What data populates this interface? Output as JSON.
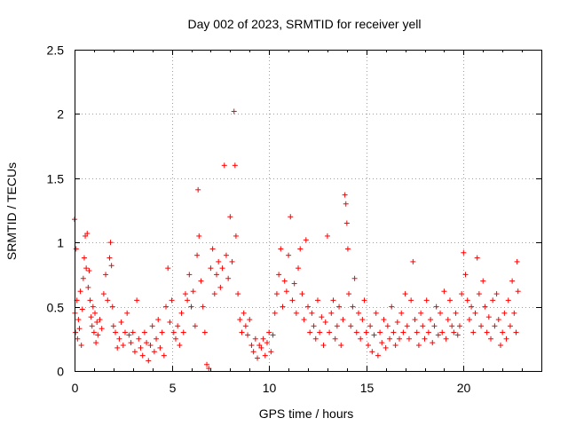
{
  "chart_data": {
    "type": "scatter",
    "title": "Day 002 of 2023, SRMTID for receiver yell",
    "xlabel": "GPS time / hours",
    "ylabel": "SRMTID / TECUs",
    "xlim": [
      0,
      24
    ],
    "ylim": [
      0,
      2.5
    ],
    "xticks": [
      0,
      5,
      10,
      15,
      20
    ],
    "yticks": [
      0,
      0.5,
      1,
      1.5,
      2,
      2.5
    ],
    "xtick_labels": [
      "0",
      "5",
      "10",
      "15",
      "20"
    ],
    "ytick_labels": [
      "0",
      "0.5",
      "1",
      "1.5",
      "2",
      "2.5"
    ],
    "grid": true,
    "marker": "+",
    "series": [
      {
        "name": "SRMTID",
        "color": "#ff0000",
        "points": [
          [
            0.0,
            1.18
          ],
          [
            0.02,
            0.45
          ],
          [
            0.05,
            0.3
          ],
          [
            0.08,
            0.95
          ],
          [
            0.12,
            0.55
          ],
          [
            0.15,
            0.25
          ],
          [
            0.2,
            0.4
          ],
          [
            0.25,
            0.33
          ],
          [
            0.3,
            0.62
          ],
          [
            0.35,
            0.2
          ],
          [
            0.4,
            0.48
          ],
          [
            0.45,
            0.72
          ],
          [
            0.5,
            0.88
          ],
          [
            0.55,
            1.05
          ],
          [
            0.6,
            0.8
          ],
          [
            0.65,
            1.07
          ],
          [
            0.7,
            0.65
          ],
          [
            0.75,
            0.78
          ],
          [
            0.8,
            0.55
          ],
          [
            0.85,
            0.42
          ],
          [
            0.9,
            0.35
          ],
          [
            0.95,
            0.5
          ],
          [
            1.0,
            0.3
          ],
          [
            1.05,
            0.45
          ],
          [
            1.1,
            0.22
          ],
          [
            1.15,
            0.38
          ],
          [
            1.2,
            0.28
          ],
          [
            1.3,
            0.4
          ],
          [
            1.4,
            0.33
          ],
          [
            1.5,
            0.6
          ],
          [
            1.6,
            0.75
          ],
          [
            1.7,
            0.55
          ],
          [
            1.8,
            0.88
          ],
          [
            1.85,
            1.0
          ],
          [
            1.9,
            0.82
          ],
          [
            1.95,
            0.5
          ],
          [
            2.0,
            0.35
          ],
          [
            2.1,
            0.3
          ],
          [
            2.2,
            0.18
          ],
          [
            2.3,
            0.25
          ],
          [
            2.4,
            0.38
          ],
          [
            2.5,
            0.2
          ],
          [
            2.6,
            0.3
          ],
          [
            2.7,
            0.45
          ],
          [
            2.8,
            0.28
          ],
          [
            2.9,
            0.22
          ],
          [
            3.0,
            0.3
          ],
          [
            3.1,
            0.15
          ],
          [
            3.2,
            0.55
          ],
          [
            3.3,
            0.25
          ],
          [
            3.4,
            0.18
          ],
          [
            3.5,
            0.12
          ],
          [
            3.6,
            0.3
          ],
          [
            3.7,
            0.22
          ],
          [
            3.8,
            0.08
          ],
          [
            3.9,
            0.2
          ],
          [
            4.0,
            0.35
          ],
          [
            4.1,
            0.15
          ],
          [
            4.2,
            0.25
          ],
          [
            4.3,
            0.4
          ],
          [
            4.4,
            0.18
          ],
          [
            4.5,
            0.3
          ],
          [
            4.6,
            0.12
          ],
          [
            4.7,
            0.5
          ],
          [
            4.8,
            0.8
          ],
          [
            4.9,
            0.38
          ],
          [
            5.0,
            0.55
          ],
          [
            5.1,
            0.3
          ],
          [
            5.2,
            0.25
          ],
          [
            5.3,
            0.35
          ],
          [
            5.4,
            0.2
          ],
          [
            5.5,
            0.45
          ],
          [
            5.6,
            0.3
          ],
          [
            5.7,
            0.6
          ],
          [
            5.8,
            0.55
          ],
          [
            5.9,
            0.75
          ],
          [
            6.0,
            0.5
          ],
          [
            6.1,
            0.62
          ],
          [
            6.2,
            0.35
          ],
          [
            6.3,
            0.9
          ],
          [
            6.35,
            1.41
          ],
          [
            6.4,
            1.05
          ],
          [
            6.5,
            0.7
          ],
          [
            6.6,
            0.5
          ],
          [
            6.7,
            0.3
          ],
          [
            6.8,
            0.05
          ],
          [
            6.9,
            0.02
          ],
          [
            7.0,
            0.8
          ],
          [
            7.1,
            0.95
          ],
          [
            7.2,
            0.6
          ],
          [
            7.3,
            0.75
          ],
          [
            7.4,
            0.85
          ],
          [
            7.5,
            0.65
          ],
          [
            7.6,
            0.8
          ],
          [
            7.7,
            1.6
          ],
          [
            7.8,
            0.9
          ],
          [
            7.9,
            0.72
          ],
          [
            8.0,
            1.2
          ],
          [
            8.1,
            0.85
          ],
          [
            8.2,
            2.02
          ],
          [
            8.25,
            1.6
          ],
          [
            8.3,
            1.05
          ],
          [
            8.4,
            0.6
          ],
          [
            8.5,
            0.4
          ],
          [
            8.6,
            0.3
          ],
          [
            8.7,
            0.45
          ],
          [
            8.8,
            0.35
          ],
          [
            8.9,
            0.28
          ],
          [
            9.0,
            0.4
          ],
          [
            9.1,
            0.2
          ],
          [
            9.2,
            0.15
          ],
          [
            9.3,
            0.25
          ],
          [
            9.4,
            0.1
          ],
          [
            9.5,
            0.2
          ],
          [
            9.6,
            0.18
          ],
          [
            9.7,
            0.25
          ],
          [
            9.8,
            0.12
          ],
          [
            9.9,
            0.22
          ],
          [
            10.0,
            0.3
          ],
          [
            10.1,
            0.15
          ],
          [
            10.2,
            0.28
          ],
          [
            10.3,
            0.45
          ],
          [
            10.4,
            0.6
          ],
          [
            10.5,
            0.75
          ],
          [
            10.6,
            0.95
          ],
          [
            10.7,
            0.5
          ],
          [
            10.8,
            0.7
          ],
          [
            10.9,
            0.62
          ],
          [
            11.0,
            0.9
          ],
          [
            11.1,
            1.2
          ],
          [
            11.2,
            0.55
          ],
          [
            11.3,
            0.68
          ],
          [
            11.4,
            0.45
          ],
          [
            11.5,
            0.8
          ],
          [
            11.6,
            0.95
          ],
          [
            11.7,
            0.6
          ],
          [
            11.8,
            0.4
          ],
          [
            11.9,
            1.02
          ],
          [
            12.0,
            0.5
          ],
          [
            12.1,
            0.3
          ],
          [
            12.2,
            0.45
          ],
          [
            12.3,
            0.35
          ],
          [
            12.4,
            0.25
          ],
          [
            12.5,
            0.55
          ],
          [
            12.6,
            0.3
          ],
          [
            12.7,
            0.42
          ],
          [
            12.8,
            0.2
          ],
          [
            12.9,
            0.38
          ],
          [
            13.0,
            1.05
          ],
          [
            13.1,
            0.3
          ],
          [
            13.2,
            0.45
          ],
          [
            13.3,
            0.55
          ],
          [
            13.4,
            0.25
          ],
          [
            13.5,
            0.35
          ],
          [
            13.6,
            0.5
          ],
          [
            13.7,
            0.2
          ],
          [
            13.8,
            0.4
          ],
          [
            13.9,
            1.37
          ],
          [
            13.95,
            1.3
          ],
          [
            14.0,
            1.15
          ],
          [
            14.05,
            0.95
          ],
          [
            14.1,
            0.6
          ],
          [
            14.2,
            0.35
          ],
          [
            14.3,
            0.5
          ],
          [
            14.4,
            0.72
          ],
          [
            14.5,
            0.3
          ],
          [
            14.6,
            0.45
          ],
          [
            14.7,
            0.25
          ],
          [
            14.8,
            0.4
          ],
          [
            14.9,
            0.55
          ],
          [
            15.0,
            0.3
          ],
          [
            15.1,
            0.2
          ],
          [
            15.2,
            0.35
          ],
          [
            15.3,
            0.15
          ],
          [
            15.4,
            0.28
          ],
          [
            15.5,
            0.45
          ],
          [
            15.6,
            0.12
          ],
          [
            15.7,
            0.3
          ],
          [
            15.8,
            0.22
          ],
          [
            15.9,
            0.4
          ],
          [
            16.0,
            0.18
          ],
          [
            16.1,
            0.35
          ],
          [
            16.2,
            0.25
          ],
          [
            16.3,
            0.5
          ],
          [
            16.4,
            0.3
          ],
          [
            16.5,
            0.2
          ],
          [
            16.6,
            0.38
          ],
          [
            16.7,
            0.25
          ],
          [
            16.8,
            0.45
          ],
          [
            16.9,
            0.3
          ],
          [
            17.0,
            0.6
          ],
          [
            17.1,
            0.35
          ],
          [
            17.2,
            0.25
          ],
          [
            17.3,
            0.55
          ],
          [
            17.4,
            0.85
          ],
          [
            17.5,
            0.4
          ],
          [
            17.6,
            0.3
          ],
          [
            17.7,
            0.2
          ],
          [
            17.8,
            0.45
          ],
          [
            17.9,
            0.35
          ],
          [
            18.0,
            0.25
          ],
          [
            18.1,
            0.55
          ],
          [
            18.2,
            0.3
          ],
          [
            18.3,
            0.4
          ],
          [
            18.4,
            0.22
          ],
          [
            18.5,
            0.35
          ],
          [
            18.6,
            0.5
          ],
          [
            18.7,
            0.28
          ],
          [
            18.8,
            0.45
          ],
          [
            18.9,
            0.3
          ],
          [
            19.0,
            0.62
          ],
          [
            19.1,
            0.25
          ],
          [
            19.2,
            0.4
          ],
          [
            19.3,
            0.55
          ],
          [
            19.4,
            0.35
          ],
          [
            19.5,
            0.3
          ],
          [
            19.6,
            0.45
          ],
          [
            19.7,
            0.28
          ],
          [
            19.8,
            0.35
          ],
          [
            19.9,
            0.6
          ],
          [
            20.0,
            0.92
          ],
          [
            20.1,
            0.75
          ],
          [
            20.2,
            0.55
          ],
          [
            20.3,
            0.4
          ],
          [
            20.4,
            0.5
          ],
          [
            20.5,
            0.3
          ],
          [
            20.6,
            0.45
          ],
          [
            20.7,
            0.88
          ],
          [
            20.8,
            0.6
          ],
          [
            20.9,
            0.35
          ],
          [
            21.0,
            0.7
          ],
          [
            21.1,
            0.5
          ],
          [
            21.2,
            0.3
          ],
          [
            21.3,
            0.42
          ],
          [
            21.4,
            0.25
          ],
          [
            21.5,
            0.55
          ],
          [
            21.6,
            0.35
          ],
          [
            21.7,
            0.6
          ],
          [
            21.8,
            0.4
          ],
          [
            21.9,
            0.2
          ],
          [
            22.0,
            0.3
          ],
          [
            22.1,
            0.45
          ],
          [
            22.2,
            0.25
          ],
          [
            22.3,
            0.55
          ],
          [
            22.4,
            0.35
          ],
          [
            22.5,
            0.7
          ],
          [
            22.6,
            0.45
          ],
          [
            22.7,
            0.3
          ],
          [
            22.75,
            0.85
          ],
          [
            22.8,
            0.62
          ]
        ]
      }
    ]
  }
}
